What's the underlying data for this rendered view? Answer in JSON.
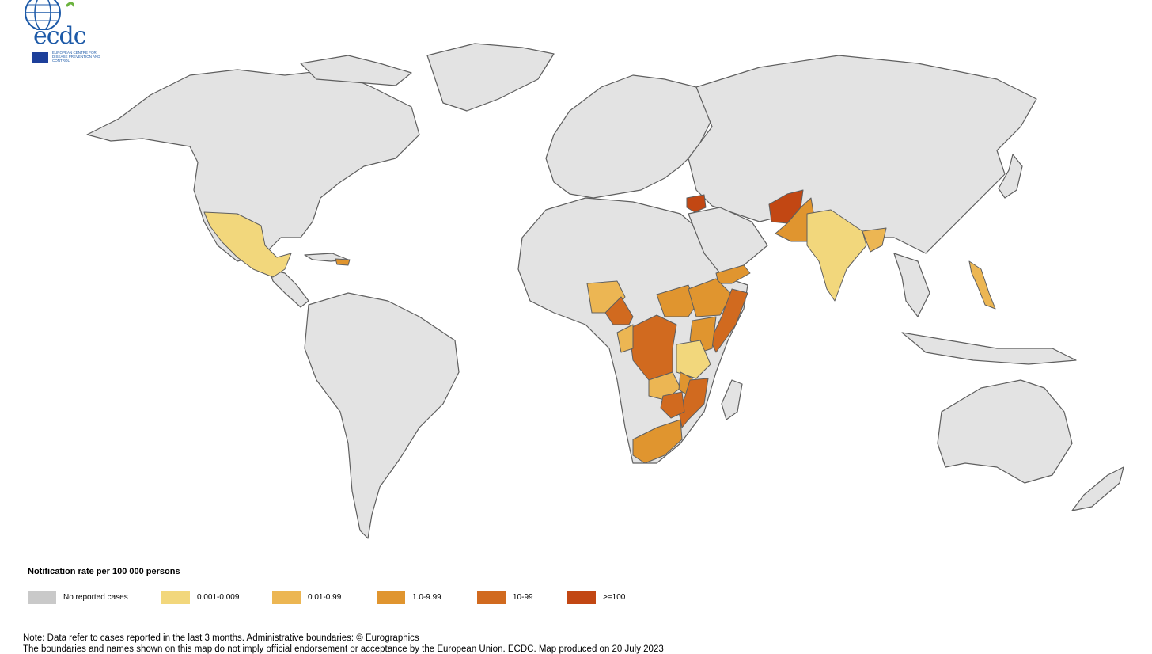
{
  "logo": {
    "name": "ecdc",
    "subtitle": "European Centre for Disease Prevention and Control"
  },
  "legend": {
    "title": "Notification rate per 100 000 persons",
    "items": [
      {
        "label": "No reported cases",
        "color": "#c9c9c9"
      },
      {
        "label": "0.001-0.009",
        "color": "#f2d77c"
      },
      {
        "label": "0.01-0.99",
        "color": "#ecb653"
      },
      {
        "label": "1.0-9.99",
        "color": "#e0952f"
      },
      {
        "label": "10-99",
        "color": "#d16a1f"
      },
      {
        "label": ">=100",
        "color": "#c24713"
      }
    ]
  },
  "colors": {
    "no_data": "#e3e3e3",
    "border": "#5f5f5f"
  },
  "note": "Note: Data refer to cases reported in the last 3 months. Administrative boundaries: © Eurographics",
  "note2": "The boundaries and names shown on this map do not imply official endorsement or acceptance by the European Union. ECDC. Map produced on 20 July 2023"
}
